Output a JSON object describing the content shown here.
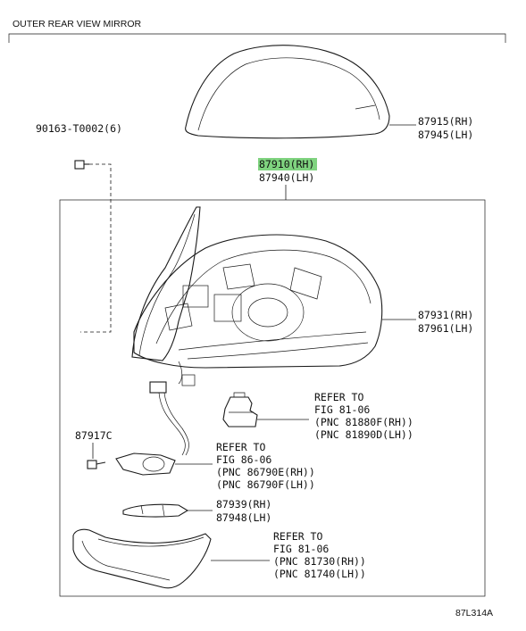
{
  "diagram": {
    "title": "OUTER REAR VIEW MIRROR",
    "figure_code": "87L314A",
    "highlight_color": "#7fd37f",
    "parts": [
      {
        "id": "cover",
        "lines": [
          "87915(RH)",
          "87945(LH)"
        ]
      },
      {
        "id": "bolt",
        "lines": [
          "90163-T0002(6)"
        ]
      },
      {
        "id": "assembly",
        "lines": [
          "87910(RH)",
          "87940(LH)"
        ],
        "highlight_first_line": true
      },
      {
        "id": "visor",
        "lines": [
          "87931(RH)",
          "87961(LH)"
        ]
      },
      {
        "id": "lamp-socket",
        "lines": [
          "REFER TO",
          "FIG 81-06",
          "(PNC 81880F(RH))",
          "(PNC 81890D(LH))"
        ]
      },
      {
        "id": "screw",
        "lines": [
          "87917C"
        ]
      },
      {
        "id": "camera",
        "lines": [
          "REFER TO",
          "FIG 86-06",
          "(PNC 86790E(RH))",
          "(PNC 86790F(LH))"
        ]
      },
      {
        "id": "cover-plate",
        "lines": [
          "87939(RH)",
          "87948(LH)"
        ]
      },
      {
        "id": "turn-lamp",
        "lines": [
          "REFER TO",
          "FIG 81-06",
          "(PNC 81730(RH))",
          "(PNC 81740(LH))"
        ]
      }
    ]
  }
}
